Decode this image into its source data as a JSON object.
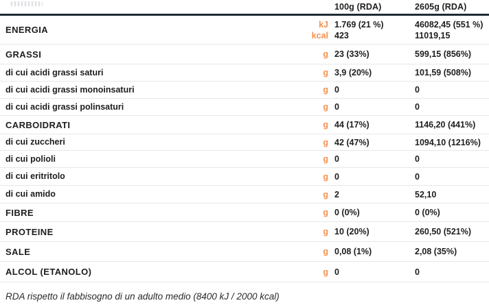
{
  "header": {
    "col_100g": "100g (RDA)",
    "col_2605g": "2605g (RDA)"
  },
  "rows": [
    {
      "label": "ENERGIA",
      "style": "section",
      "units": [
        "kJ",
        "kcal"
      ],
      "per_100g": [
        "1.769 (21 %)",
        "423"
      ],
      "per_2605g": [
        "46082,45 (551 %)",
        "11019,15"
      ]
    },
    {
      "label": "GRASSI",
      "style": "section",
      "units": [
        "g"
      ],
      "per_100g": [
        "23 (33%)"
      ],
      "per_2605g": [
        "599,15 (856%)"
      ]
    },
    {
      "label": "di cui acidi grassi saturi",
      "style": "sub",
      "units": [
        "g"
      ],
      "per_100g": [
        "3,9 (20%)"
      ],
      "per_2605g": [
        "101,59 (508%)"
      ]
    },
    {
      "label": "di cui acidi grassi monoinsaturi",
      "style": "sub",
      "units": [
        "g"
      ],
      "per_100g": [
        "0"
      ],
      "per_2605g": [
        "0"
      ]
    },
    {
      "label": "di cui acidi grassi polinsaturi",
      "style": "sub",
      "units": [
        "g"
      ],
      "per_100g": [
        "0"
      ],
      "per_2605g": [
        "0"
      ]
    },
    {
      "label": "CARBOIDRATI",
      "style": "section",
      "units": [
        "g"
      ],
      "per_100g": [
        "44 (17%)"
      ],
      "per_2605g": [
        "1146,20 (441%)"
      ]
    },
    {
      "label": "di cui zuccheri",
      "style": "sub",
      "units": [
        "g"
      ],
      "per_100g": [
        "42 (47%)"
      ],
      "per_2605g": [
        "1094,10 (1216%)"
      ]
    },
    {
      "label": "di cui polioli",
      "style": "sub",
      "units": [
        "g"
      ],
      "per_100g": [
        "0"
      ],
      "per_2605g": [
        "0"
      ]
    },
    {
      "label": "di cui eritritolo",
      "style": "sub",
      "units": [
        "g"
      ],
      "per_100g": [
        "0"
      ],
      "per_2605g": [
        "0"
      ]
    },
    {
      "label": "di cui amido",
      "style": "sub",
      "units": [
        "g"
      ],
      "per_100g": [
        "2"
      ],
      "per_2605g": [
        "52,10"
      ]
    },
    {
      "label": "FIBRE",
      "style": "section",
      "units": [
        "g"
      ],
      "per_100g": [
        "0 (0%)"
      ],
      "per_2605g": [
        "0 (0%)"
      ]
    },
    {
      "label": "PROTEINE",
      "style": "section",
      "units": [
        "g"
      ],
      "per_100g": [
        "10 (20%)"
      ],
      "per_2605g": [
        "260,50 (521%)"
      ]
    },
    {
      "label": "SALE",
      "style": "section",
      "units": [
        "g"
      ],
      "per_100g": [
        "0,08 (1%)"
      ],
      "per_2605g": [
        "2,08 (35%)"
      ]
    },
    {
      "label": "ALCOL (ETANOLO)",
      "style": "section",
      "units": [
        "g"
      ],
      "per_100g": [
        "0"
      ],
      "per_2605g": [
        "0"
      ]
    }
  ],
  "footer": {
    "note": "RDA rispetto il fabbisogno di un adulto medio (8400 kJ / 2000 kcal)"
  },
  "colors": {
    "accent": "#F6914E",
    "header_line": "#1F2A35",
    "divider": "#E7E7E7",
    "text": "#1D1D1F",
    "background": "#FFFFFF"
  }
}
